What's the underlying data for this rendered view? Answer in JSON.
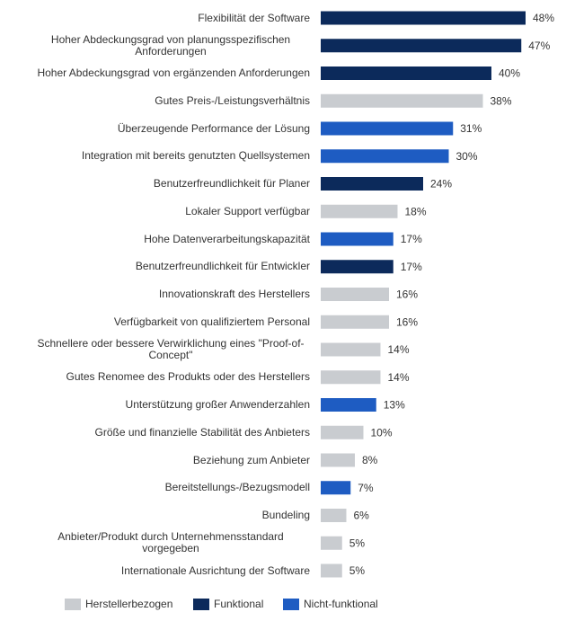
{
  "chart_data": {
    "type": "bar",
    "orientation": "horizontal",
    "categories": [
      "Flexibilität der Software",
      "Hoher Abdeckungsgrad von planungsspezifischen Anforderungen",
      "Hoher Abdeckungsgrad von ergänzenden Anforderungen",
      "Gutes Preis-/Leistungsverhältnis",
      "Überzeugende Performance der Lösung",
      "Integration mit bereits genutzten Quellsystemen",
      "Benutzerfreundlichkeit für Planer",
      "Lokaler Support verfügbar",
      "Hohe Datenverarbeitungskapazität",
      "Benutzerfreundlichkeit für Entwickler",
      "Innovationskraft des Herstellers",
      "Verfügbarkeit von qualifiziertem Personal",
      "Schnellere oder bessere Verwirklichung eines \"Proof-of-Concept\"",
      "Gutes Renomee des Produkts oder des Herstellers",
      "Unterstützung großer Anwenderzahlen",
      "Größe und finanzielle Stabilität des Anbieters",
      "Beziehung zum Anbieter",
      "Bereitstellungs-/Bezugsmodell",
      "Bundeling",
      "Anbieter/Produkt durch Unternehmensstandard vorgegeben",
      "Internationale Ausrichtung der Software"
    ],
    "series": [
      {
        "name": "Herstellerbezogen",
        "color": "#c9ccd0",
        "values": [
          null,
          null,
          null,
          38,
          null,
          null,
          null,
          18,
          null,
          null,
          16,
          16,
          14,
          14,
          null,
          10,
          8,
          null,
          6,
          5,
          5
        ],
        "value_labels": [
          null,
          null,
          null,
          "38%",
          null,
          null,
          null,
          "18%",
          null,
          null,
          "16%",
          "16%",
          "14%",
          "14%",
          null,
          "10%",
          "8%",
          null,
          "6%",
          "5%",
          "5%"
        ]
      },
      {
        "name": "Funktional",
        "color": "#0c2a5b",
        "values": [
          48,
          47,
          40,
          null,
          null,
          null,
          24,
          null,
          null,
          17,
          null,
          null,
          null,
          null,
          null,
          null,
          null,
          null,
          null,
          null,
          null
        ],
        "value_labels": [
          "48%",
          "47%",
          "40%",
          null,
          null,
          null,
          "24%",
          null,
          null,
          "17%",
          null,
          null,
          null,
          null,
          null,
          null,
          null,
          null,
          null,
          null,
          null
        ]
      },
      {
        "name": "Nicht-funktional",
        "color": "#1e5cc2",
        "values": [
          null,
          null,
          null,
          null,
          31,
          30,
          null,
          null,
          17,
          null,
          null,
          null,
          null,
          null,
          13,
          null,
          null,
          7,
          null,
          null,
          null
        ],
        "value_labels": [
          null,
          null,
          null,
          null,
          "31%",
          "30%",
          null,
          null,
          "17%",
          null,
          null,
          null,
          null,
          null,
          "13%",
          null,
          null,
          "7%",
          null,
          null,
          null
        ]
      }
    ]
  }
}
